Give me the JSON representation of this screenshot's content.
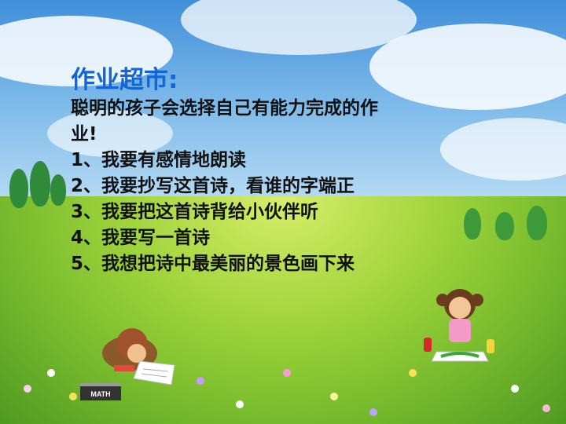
{
  "slide": {
    "title": "作业超市:",
    "intro_line1": " 聪明的孩子会选择自己有能力完成的作",
    "intro_line2": "业!",
    "items": [
      "1、我要有感情地朗读",
      "2、我要抄写这首诗，看谁的字端正",
      "3、我要把这首诗背给小伙伴听",
      "4、我要写一首诗",
      "5、我想把诗中最美丽的景色画下来"
    ],
    "book_label": "MATH"
  },
  "colors": {
    "title": "#1466d8",
    "text": "#111111",
    "sky": "#4a94da",
    "grass": "#9fd43b"
  },
  "icons": [
    "boy-reading-illustration",
    "girl-painting-illustration",
    "math-book-icon"
  ]
}
